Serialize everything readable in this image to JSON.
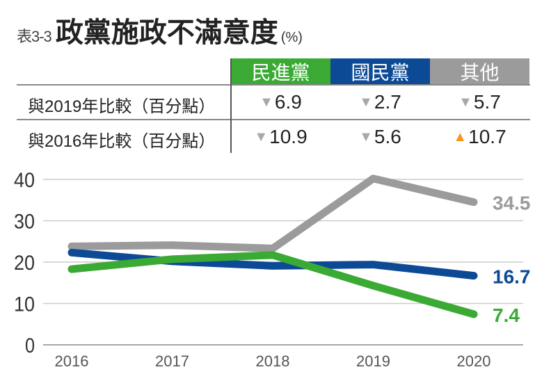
{
  "title": {
    "prefix": "表3-3",
    "main": "政黨施政不滿意度",
    "unit": "(%)"
  },
  "table": {
    "columns": [
      {
        "label": "民進黨",
        "color": "#3aaa35"
      },
      {
        "label": "國民黨",
        "color": "#0c4a96"
      },
      {
        "label": "其他",
        "color": "#9b9b9b"
      }
    ],
    "rows": [
      {
        "label": "與2019年比較（百分點）",
        "cells": [
          {
            "dir": "down",
            "value": "6.9"
          },
          {
            "dir": "down",
            "value": "2.7"
          },
          {
            "dir": "down",
            "value": "5.7"
          }
        ]
      },
      {
        "label": "與2016年比較（百分點）",
        "cells": [
          {
            "dir": "down",
            "value": "10.9"
          },
          {
            "dir": "down",
            "value": "5.6"
          },
          {
            "dir": "up",
            "value": "10.7"
          }
        ]
      }
    ],
    "arrow_colors": {
      "down": "#a8a8a8",
      "up": "#f7941d"
    }
  },
  "chart_data": {
    "type": "line",
    "x": [
      "2016",
      "2017",
      "2018",
      "2019",
      "2020"
    ],
    "ylim": [
      0,
      40
    ],
    "yticks": [
      "0",
      "10",
      "20",
      "30",
      "40"
    ],
    "grid": true,
    "series": [
      {
        "color": "#9b9b9b",
        "values": [
          23.8,
          24.1,
          23.3,
          40.2,
          34.5
        ],
        "end_label": "34.5"
      },
      {
        "color": "#0c4a96",
        "values": [
          22.3,
          20.2,
          19.1,
          19.4,
          16.7
        ],
        "end_label": "16.7"
      },
      {
        "color": "#3aaa35",
        "values": [
          18.3,
          20.7,
          21.7,
          14.3,
          7.4
        ],
        "end_label": "7.4"
      }
    ]
  }
}
